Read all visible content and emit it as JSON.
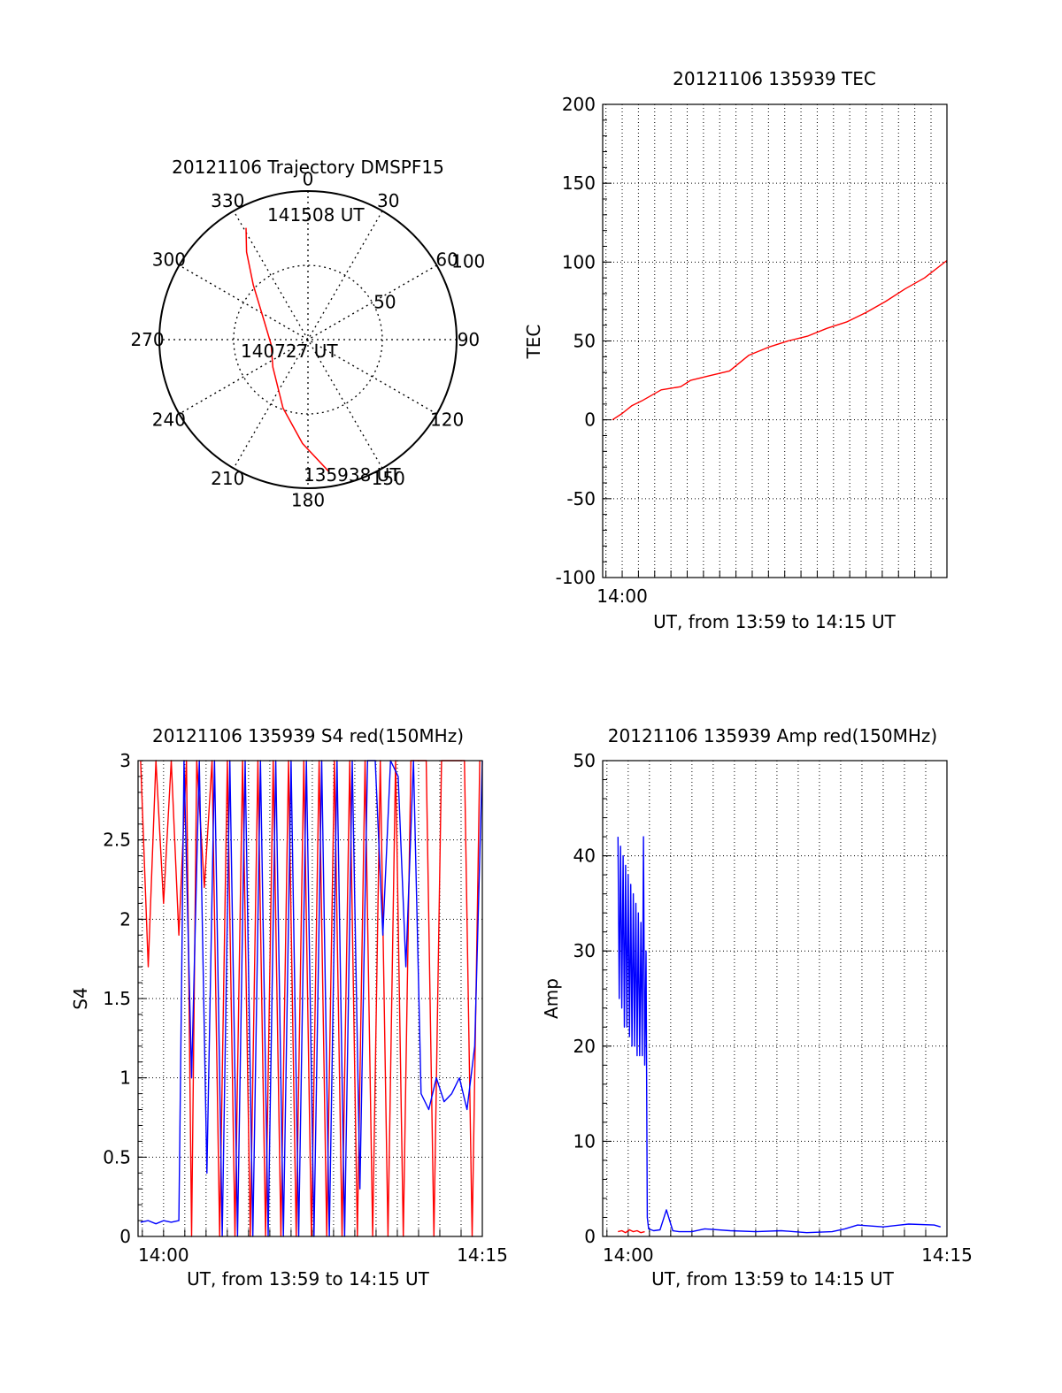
{
  "chart_data": [
    {
      "id": "trajectory",
      "type": "scatter",
      "projection": "polar",
      "title": "20121106 Trajectory DMSPF15",
      "angle_ticks": [
        "0",
        "30",
        "60",
        "90",
        "120",
        "150",
        "180",
        "210",
        "240",
        "270",
        "300",
        "330"
      ],
      "radius_labels": [
        "50",
        "100"
      ],
      "radius_max": 100,
      "series": [
        {
          "color": "#ff0000",
          "points": [
            {
              "az": 171,
              "r": 90
            },
            {
              "az": 183,
              "r": 70
            },
            {
              "az": 200,
              "r": 49
            },
            {
              "az": 232,
              "r": 30
            },
            {
              "az": 262,
              "r": 25
            },
            {
              "az": 293,
              "r": 32
            },
            {
              "az": 315,
              "r": 52
            },
            {
              "az": 325,
              "r": 72
            },
            {
              "az": 331,
              "r": 86
            }
          ]
        }
      ],
      "annotations": [
        "141508 UT",
        "140727 UT",
        "135938 UT"
      ]
    },
    {
      "id": "tec",
      "type": "line",
      "title": "20121106 135939 TEC",
      "xlabel": "UT, from 13:59 to 14:15 UT",
      "ylabel": "TEC",
      "xlim": [
        -0.02,
        0.333
      ],
      "ylim": [
        -100,
        200
      ],
      "yticks": [
        "-100",
        "-50",
        "0",
        "50",
        "100",
        "150",
        "200"
      ],
      "xtick_labels": [
        {
          "at": 0,
          "label": "14:00"
        }
      ],
      "grid": true,
      "series": [
        {
          "color": "#ff0000",
          "x": [
            -0.01,
            0.0,
            0.01,
            0.02,
            0.04,
            0.06,
            0.07,
            0.09,
            0.11,
            0.13,
            0.15,
            0.17,
            0.19,
            0.21,
            0.23,
            0.25,
            0.27,
            0.29,
            0.31,
            0.333
          ],
          "y": [
            0,
            4,
            9,
            12,
            19,
            21,
            25,
            28,
            31,
            41,
            46,
            50,
            53,
            58,
            62,
            68,
            75,
            83,
            90,
            101
          ]
        }
      ]
    },
    {
      "id": "s4",
      "type": "line",
      "title": "20121106 135939 S4 red(150MHz)",
      "xlabel": "UT, from 13:59 to 14:15 UT",
      "ylabel": "S4",
      "xlim": [
        -0.02,
        0.25
      ],
      "ylim": [
        0,
        3
      ],
      "yticks": [
        "0",
        "0.5",
        "1",
        "1.5",
        "2",
        "2.5",
        "3"
      ],
      "xtick_labels": [
        {
          "at": 0,
          "label": "14:00"
        },
        {
          "at": 0.25,
          "label": "14:15"
        }
      ],
      "grid": true,
      "series": [
        {
          "color": "#ff0000",
          "x": [
            -0.018,
            -0.012,
            -0.006,
            0.0,
            0.006,
            0.012,
            0.018,
            0.022,
            0.026,
            0.032,
            0.038,
            0.044,
            0.05,
            0.056,
            0.062,
            0.068,
            0.074,
            0.08,
            0.086,
            0.092,
            0.098,
            0.104,
            0.11,
            0.116,
            0.122,
            0.128,
            0.134,
            0.14,
            0.146,
            0.152,
            0.158,
            0.164,
            0.17,
            0.176,
            0.182,
            0.188,
            0.194,
            0.2,
            0.206,
            0.212,
            0.218,
            0.224,
            0.23,
            0.236,
            0.242,
            0.248
          ],
          "y": [
            3,
            1.7,
            3,
            2.1,
            3,
            1.9,
            3,
            0,
            3,
            2.2,
            3,
            0,
            3,
            0,
            3,
            0,
            3,
            0,
            3,
            0,
            3,
            0,
            3,
            0,
            3,
            0,
            3,
            0,
            3,
            0,
            3,
            0,
            3,
            0,
            3,
            0,
            3,
            3,
            3,
            0,
            3,
            3,
            3,
            3,
            0,
            3
          ]
        },
        {
          "color": "#0000ff",
          "x": [
            -0.018,
            -0.012,
            -0.006,
            0.0,
            0.006,
            0.012,
            0.014,
            0.016,
            0.022,
            0.028,
            0.034,
            0.04,
            0.046,
            0.052,
            0.058,
            0.064,
            0.07,
            0.076,
            0.082,
            0.088,
            0.094,
            0.1,
            0.106,
            0.112,
            0.118,
            0.124,
            0.13,
            0.136,
            0.142,
            0.148,
            0.154,
            0.16,
            0.166,
            0.172,
            0.178,
            0.184,
            0.19,
            0.196,
            0.202,
            0.208,
            0.214,
            0.22,
            0.226,
            0.232,
            0.238,
            0.244,
            0.25
          ],
          "y": [
            0.09,
            0.1,
            0.08,
            0.1,
            0.09,
            0.1,
            1.5,
            3,
            1.0,
            3,
            0.4,
            3,
            0,
            3,
            0,
            3,
            0,
            3,
            0,
            3,
            0,
            3,
            0,
            3,
            0,
            3,
            0,
            3,
            0,
            3,
            0.3,
            3,
            3,
            1.9,
            3,
            2.9,
            1.7,
            3,
            0.9,
            0.8,
            1.0,
            0.85,
            0.9,
            1.0,
            0.8,
            1.2,
            3
          ]
        }
      ]
    },
    {
      "id": "amp",
      "type": "line",
      "title": "20121106 135939 Amp red(150MHz)",
      "xlabel": "UT, from 13:59 to 14:15 UT",
      "ylabel": "Amp",
      "xlim": [
        -0.02,
        0.25
      ],
      "ylim": [
        0,
        50
      ],
      "yticks": [
        "0",
        "10",
        "20",
        "30",
        "40",
        "50"
      ],
      "xtick_labels": [
        {
          "at": 0,
          "label": "14:00"
        },
        {
          "at": 0.25,
          "label": "14:15"
        }
      ],
      "grid": true,
      "series": [
        {
          "color": "#0000ff",
          "x": [
            -0.008,
            -0.007,
            -0.006,
            -0.005,
            -0.004,
            -0.003,
            -0.002,
            -0.001,
            0.0,
            0.001,
            0.002,
            0.003,
            0.004,
            0.005,
            0.006,
            0.007,
            0.008,
            0.009,
            0.01,
            0.011,
            0.012,
            0.013,
            0.014,
            0.015,
            0.016,
            0.02,
            0.025,
            0.03,
            0.035,
            0.04,
            0.05,
            0.06,
            0.08,
            0.1,
            0.12,
            0.14,
            0.16,
            0.17,
            0.18,
            0.2,
            0.22,
            0.24,
            0.245
          ],
          "y": [
            42,
            25,
            41,
            24,
            40,
            22,
            39,
            22,
            38,
            21,
            37,
            20,
            36,
            20,
            35,
            19,
            34,
            19,
            33,
            19,
            42,
            18,
            30,
            2,
            0.8,
            0.6,
            0.7,
            2.8,
            0.6,
            0.5,
            0.5,
            0.8,
            0.6,
            0.5,
            0.6,
            0.4,
            0.5,
            0.8,
            1.2,
            1.0,
            1.3,
            1.2,
            1.0
          ]
        },
        {
          "color": "#ff0000",
          "x": [
            -0.008,
            -0.005,
            -0.002,
            0.001,
            0.004,
            0.007,
            0.01,
            0.013
          ],
          "y": [
            0.5,
            0.6,
            0.4,
            0.7,
            0.5,
            0.6,
            0.4,
            0.5
          ]
        }
      ]
    }
  ]
}
